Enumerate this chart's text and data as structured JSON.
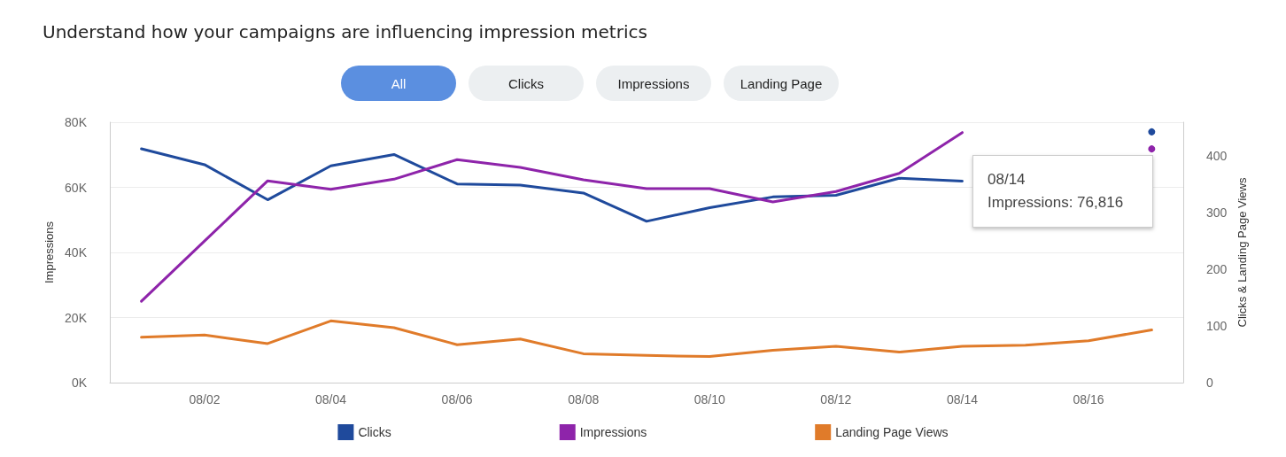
{
  "chart_data": {
    "type": "line",
    "title": "Understand how your campaigns are influencing impression metrics",
    "categories": [
      null,
      "08/02",
      null,
      "08/04",
      null,
      "08/06",
      null,
      "08/08",
      null,
      "08/10",
      null,
      "08/12",
      null,
      "08/14",
      null,
      "08/16",
      null
    ],
    "series": [
      {
        "name": "Clicks",
        "color": "#1f4a9c",
        "axis": "y2",
        "values": [
          413,
          385,
          323,
          383,
          403,
          351,
          349,
          335,
          285,
          309,
          328,
          331,
          361,
          356,
          null,
          null,
          443
        ]
      },
      {
        "name": "Impressions",
        "color": "#8e24aa",
        "values": [
          25000,
          43500,
          62000,
          59400,
          62500,
          68500,
          66100,
          62300,
          59600,
          59600,
          55500,
          58700,
          64300,
          76816,
          null,
          null,
          71800
        ]
      },
      {
        "name": "Landing Page Views",
        "color": "#e07b2a",
        "axis": "y2",
        "values": [
          80,
          84,
          69,
          109,
          97,
          67,
          77,
          51,
          48,
          46,
          57,
          64,
          54,
          64,
          66,
          74,
          93
        ]
      }
    ],
    "ylabel": "Impressions",
    "y2label": "Clicks & Landing Page Views",
    "ylim": [
      0,
      80000
    ],
    "yticks": [
      {
        "value": 0,
        "label": "0K"
      },
      {
        "value": 20000,
        "label": "20K"
      },
      {
        "value": 40000,
        "label": "40K"
      },
      {
        "value": 60000,
        "label": "60K"
      },
      {
        "value": 80000,
        "label": "80K"
      }
    ],
    "y2lim": [
      0,
      460
    ],
    "y2ticks": [
      0,
      100,
      200,
      300,
      400
    ],
    "grid": "y",
    "legend": "bottom",
    "marker": "none",
    "line_style": "solid",
    "annotations": [
      "All",
      "Clicks",
      "Impressions",
      "Landing Page",
      "08/14\nImpressions: 76,816"
    ]
  }
}
